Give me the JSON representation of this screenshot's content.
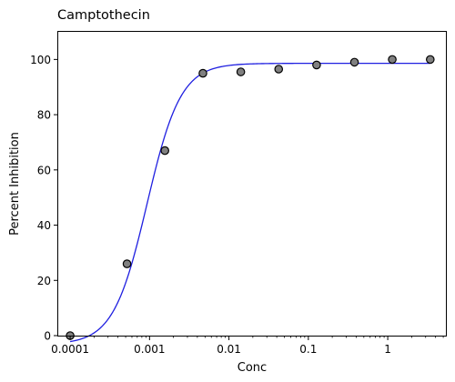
{
  "chart_data": {
    "type": "scatter",
    "title": "Camptothecin",
    "xlabel": "Conc",
    "ylabel": "Percent Inhibition",
    "x_scale": "log",
    "xlim": [
      7.08e-05,
      5.4
    ],
    "ylim": [
      0,
      110
    ],
    "x_ticks": [
      0.0001,
      0.001,
      0.01,
      0.1,
      1
    ],
    "x_tick_labels": [
      "0.0001",
      "0.001",
      "0.01",
      "0.1",
      "1"
    ],
    "y_ticks": [
      0,
      20,
      40,
      60,
      80,
      100
    ],
    "y_tick_labels": [
      "0",
      "20",
      "40",
      "60",
      "80",
      "100"
    ],
    "grid": false,
    "series": [
      {
        "kind": "points",
        "color": "#808080",
        "edge_color": "#000000",
        "points": [
          {
            "x": 0.0001,
            "y": 0
          },
          {
            "x": 0.00052,
            "y": 26
          },
          {
            "x": 0.00156,
            "y": 67
          },
          {
            "x": 0.0047,
            "y": 95
          },
          {
            "x": 0.0141,
            "y": 95.5
          },
          {
            "x": 0.0423,
            "y": 96.5
          },
          {
            "x": 0.127,
            "y": 98
          },
          {
            "x": 0.381,
            "y": 99
          },
          {
            "x": 1.14,
            "y": 100
          },
          {
            "x": 3.43,
            "y": 100
          }
        ]
      },
      {
        "kind": "fit",
        "color": "#1f1fe0",
        "model": "four-parameter logistic",
        "bottom": -3.2,
        "top": 98.6,
        "ic50": 0.00093,
        "hill": 2.05
      }
    ]
  }
}
